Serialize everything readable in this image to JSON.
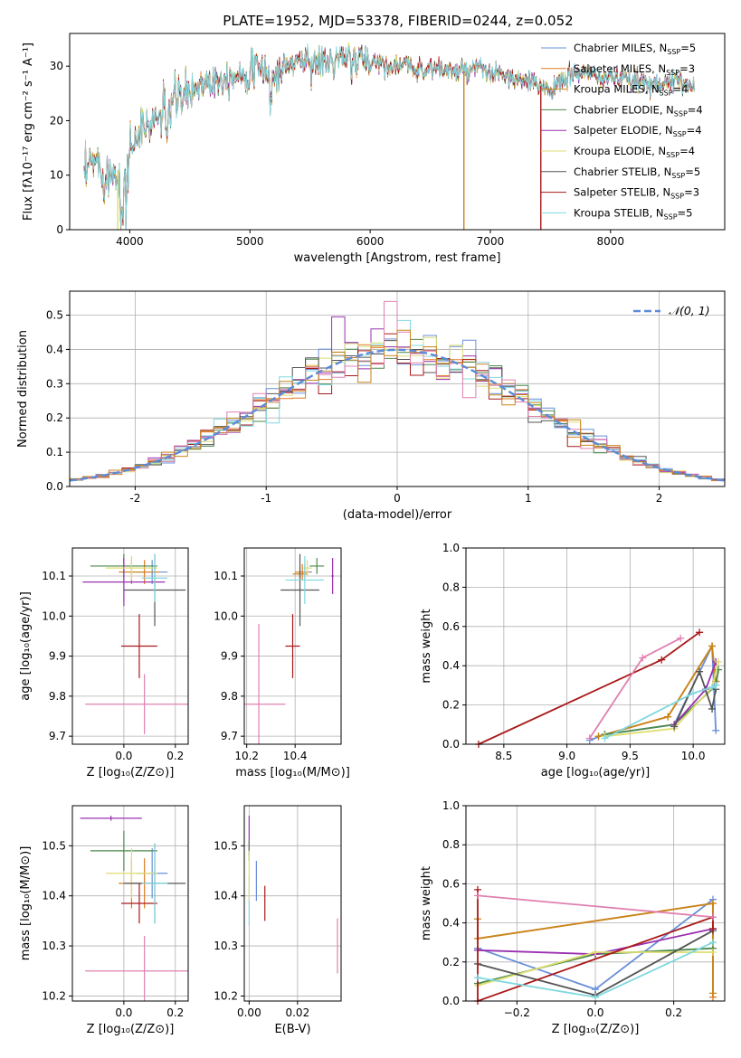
{
  "figure": {
    "title": "PLATE=1952, MJD=53378, FIBERID=0244, z=0.052"
  },
  "colors": [
    "#6a8fd8",
    "#e07b27",
    "#c8851a",
    "#4d8a4d",
    "#9a30b0",
    "#dede70",
    "#555555",
    "#aa1a1a",
    "#80d8e0",
    "#e080b0"
  ],
  "chart_data": [
    {
      "type": "line",
      "name": "spectrum",
      "xlabel": "wavelength [Angstrom, rest frame]",
      "ylabel": "Flux [fλ10⁻¹⁷ erg cm⁻² s⁻¹ A⁻¹]",
      "xlim": [
        3500,
        8950
      ],
      "ylim": [
        0,
        36
      ],
      "xticks": [
        4000,
        5000,
        6000,
        7000,
        8000
      ],
      "yticks": [
        0,
        10,
        20,
        30
      ],
      "grid": false,
      "legend": "top-right",
      "anchors_x": [
        3620,
        3700,
        3800,
        3900,
        3950,
        4000,
        4100,
        4200,
        4300,
        4400,
        4500,
        4600,
        4700,
        4800,
        4900,
        5000,
        5100,
        5200,
        5300,
        5400,
        5500,
        5600,
        5700,
        5800,
        5900,
        6000,
        6100,
        6200,
        6300,
        6400,
        6500,
        6600,
        6700,
        6800,
        6900,
        7000,
        7100,
        7200,
        7300,
        7400,
        7500,
        7600,
        7700,
        7800,
        7900,
        8000,
        8100,
        8200,
        8300,
        8400,
        8500,
        8600,
        8700
      ],
      "anchors_y": [
        9,
        13,
        10,
        11,
        8,
        15,
        18,
        20,
        22,
        24,
        25,
        27,
        27.5,
        28,
        28.5,
        29,
        29.5,
        28,
        30,
        31,
        31,
        30.5,
        31,
        31,
        32,
        31,
        30.5,
        30,
        30,
        29.5,
        29.5,
        29.5,
        29,
        29,
        29.5,
        28.5,
        28.5,
        27.5,
        27,
        26.5,
        26,
        27,
        29,
        28.5,
        28,
        28,
        27.5,
        27,
        27,
        27,
        27,
        27,
        26.5
      ],
      "series": [
        {
          "name": "Chabrier MILES, N_SSP=5"
        },
        {
          "name": "Salpeter MILES, N_SSP=3"
        },
        {
          "name": "Kroupa MILES, N_SSP=4"
        },
        {
          "name": "Chabrier ELODIE, N_SSP=4"
        },
        {
          "name": "Salpeter ELODIE, N_SSP=4"
        },
        {
          "name": "Kroupa ELODIE, N_SSP=4"
        },
        {
          "name": "Chabrier STELIB, N_SSP=5"
        },
        {
          "name": "Salpeter STELIB, N_SSP=3"
        },
        {
          "name": "Kroupa STELIB, N_SSP=5"
        }
      ],
      "drops": [
        {
          "x": 3900,
          "series_color": "#dede70"
        },
        {
          "x": 6780,
          "series_color": "#c8851a"
        },
        {
          "x": 7420,
          "series_color": "#aa1a1a"
        }
      ]
    },
    {
      "type": "histogram",
      "name": "residuals",
      "xlabel": "(data-model)/error",
      "ylabel": "Normed distribution",
      "xlim": [
        -2.5,
        2.5
      ],
      "ylim": [
        0,
        0.57
      ],
      "xticks": [
        -2,
        -1,
        0,
        1,
        2
      ],
      "yticks": [
        0.0,
        0.1,
        0.2,
        0.3,
        0.4,
        0.5
      ],
      "grid": true,
      "legend": "top-right",
      "reference_curve": {
        "label": "𝒩(0, 1)",
        "mean": 0,
        "sd": 1
      },
      "bin_width": 0.1
    },
    {
      "type": "scatter",
      "name": "age-vs-Z",
      "xlabel": "Z [log₁₀(Z/Z⊙)]",
      "ylabel": "age  [log₁₀(age/yr)]",
      "xlim": [
        -0.2,
        0.25
      ],
      "ylim": [
        9.68,
        10.17
      ],
      "xticks": [
        0.0,
        0.2
      ],
      "yticks": [
        9.7,
        9.8,
        9.9,
        10.0,
        10.1
      ],
      "grid": true,
      "points": [
        {
          "color": "#6a8fd8",
          "x": 0.11,
          "y": 10.11,
          "xerr": 0.06,
          "yerr": 0.03
        },
        {
          "color": "#e07b27",
          "x": 0.08,
          "y": 10.11,
          "xerr": 0.06,
          "yerr": 0.03
        },
        {
          "color": "#c8851a",
          "x": 0.03,
          "y": 10.11,
          "xerr": 0.05,
          "yerr": 0.03
        },
        {
          "color": "#4d8a4d",
          "x": 0.0,
          "y": 10.125,
          "xerr": 0.13,
          "yerr": 0.03
        },
        {
          "color": "#9a30b0",
          "x": 0.0,
          "y": 10.085,
          "xerr": 0.16,
          "yerr": 0.06
        },
        {
          "color": "#dede70",
          "x": 0.03,
          "y": 10.12,
          "xerr": 0.1,
          "yerr": 0.03
        },
        {
          "color": "#555555",
          "x": 0.12,
          "y": 10.065,
          "xerr": 0.12,
          "yerr": 0.09
        },
        {
          "color": "#aa1a1a",
          "x": 0.06,
          "y": 9.925,
          "xerr": 0.07,
          "yerr": 0.08
        },
        {
          "color": "#80d8e0",
          "x": 0.12,
          "y": 10.095,
          "xerr": 0.05,
          "yerr": 0.06
        },
        {
          "color": "#e080b0",
          "x": 0.08,
          "y": 9.78,
          "xerr": 0.23,
          "yerr": 0.075
        }
      ]
    },
    {
      "type": "scatter",
      "name": "age-vs-mass",
      "xlabel": "mass [log₁₀(M/M⊙)]",
      "ylabel": "",
      "xlim": [
        10.19,
        10.59
      ],
      "ylim": [
        9.68,
        10.17
      ],
      "xticks": [
        10.2,
        10.4
      ],
      "yticks": [
        9.7,
        9.8,
        9.9,
        10.0,
        10.1
      ],
      "grid": true,
      "points": [
        {
          "color": "#6a8fd8",
          "x": 10.44,
          "y": 10.11,
          "xerr": 0.03,
          "yerr": 0.02
        },
        {
          "color": "#e07b27",
          "x": 10.43,
          "y": 10.11,
          "xerr": 0.03,
          "yerr": 0.02
        },
        {
          "color": "#c8851a",
          "x": 10.42,
          "y": 10.105,
          "xerr": 0.03,
          "yerr": 0.02
        },
        {
          "color": "#4d8a4d",
          "x": 10.49,
          "y": 10.125,
          "xerr": 0.03,
          "yerr": 0.02
        },
        {
          "color": "#9a30b0",
          "x": 10.555,
          "y": 10.1,
          "xerr": 0.005,
          "yerr": 0.045
        },
        {
          "color": "#dede70",
          "x": 10.45,
          "y": 10.12,
          "xerr": 0.02,
          "yerr": 0.02
        },
        {
          "color": "#555555",
          "x": 10.42,
          "y": 10.065,
          "xerr": 0.08,
          "yerr": 0.09
        },
        {
          "color": "#aa1a1a",
          "x": 10.39,
          "y": 9.925,
          "xerr": 0.03,
          "yerr": 0.08
        },
        {
          "color": "#80d8e0",
          "x": 10.44,
          "y": 10.09,
          "xerr": 0.08,
          "yerr": 0.06
        },
        {
          "color": "#e080b0",
          "x": 10.25,
          "y": 9.78,
          "xerr": 0.11,
          "yerr": 0.2
        }
      ]
    },
    {
      "type": "line",
      "name": "weight-vs-age",
      "xlabel": "age  [log₁₀(age/yr)]",
      "ylabel": "mass weight",
      "xlim": [
        8.2,
        10.25
      ],
      "ylim": [
        0,
        1.0
      ],
      "xticks": [
        8.5,
        9.0,
        9.5,
        10.0
      ],
      "yticks": [
        0.0,
        0.2,
        0.4,
        0.6,
        0.8,
        1.0
      ],
      "grid": true,
      "series": [
        {
          "color": "#6a8fd8",
          "x": [
            9.18,
            9.3,
            9.85,
            10.15,
            10.18
          ],
          "y": [
            0.02,
            0.05,
            0.1,
            0.5,
            0.07
          ]
        },
        {
          "color": "#e07b27",
          "x": [
            9.25,
            9.8,
            10.15,
            10.18
          ],
          "y": [
            0.04,
            0.14,
            0.5,
            0.32
          ]
        },
        {
          "color": "#c8851a",
          "x": [
            9.25,
            9.8,
            10.15,
            10.18
          ],
          "y": [
            0.04,
            0.14,
            0.5,
            0.32
          ]
        },
        {
          "color": "#4d8a4d",
          "x": [
            9.3,
            9.85,
            10.18,
            10.2
          ],
          "y": [
            0.05,
            0.1,
            0.3,
            0.38
          ]
        },
        {
          "color": "#9a30b0",
          "x": [
            9.85,
            10.1,
            10.18
          ],
          "y": [
            0.1,
            0.28,
            0.42
          ]
        },
        {
          "color": "#dede70",
          "x": [
            9.3,
            9.85,
            10.15,
            10.2
          ],
          "y": [
            0.04,
            0.08,
            0.29,
            0.42
          ]
        },
        {
          "color": "#555555",
          "x": [
            9.85,
            10.05,
            10.15,
            10.18
          ],
          "y": [
            0.09,
            0.37,
            0.18,
            0.28
          ]
        },
        {
          "color": "#aa1a1a",
          "x": [
            8.3,
            9.75,
            10.05
          ],
          "y": [
            0.0,
            0.43,
            0.57
          ]
        },
        {
          "color": "#80d8e0",
          "x": [
            9.3,
            10.0,
            10.15,
            10.18
          ],
          "y": [
            0.03,
            0.26,
            0.29,
            0.3
          ]
        },
        {
          "color": "#e080b0",
          "x": [
            9.18,
            9.6,
            9.9
          ],
          "y": [
            0.03,
            0.44,
            0.54
          ]
        }
      ]
    },
    {
      "type": "scatter",
      "name": "mass-vs-Z",
      "xlabel": "Z [log₁₀(Z/Z⊙)]",
      "ylabel": "mass [log₁₀(M/M⊙)]",
      "xlim": [
        -0.2,
        0.25
      ],
      "ylim": [
        10.19,
        10.58
      ],
      "xticks": [
        0.0,
        0.2
      ],
      "yticks": [
        10.2,
        10.3,
        10.4,
        10.5
      ],
      "grid": true,
      "points": [
        {
          "color": "#6a8fd8",
          "x": 0.11,
          "y": 10.445,
          "xerr": 0.06,
          "yerr": 0.05
        },
        {
          "color": "#e07b27",
          "x": 0.08,
          "y": 10.425,
          "xerr": 0.06,
          "yerr": 0.05
        },
        {
          "color": "#c8851a",
          "x": 0.03,
          "y": 10.425,
          "xerr": 0.05,
          "yerr": 0.05
        },
        {
          "color": "#4d8a4d",
          "x": 0.0,
          "y": 10.49,
          "xerr": 0.13,
          "yerr": 0.04
        },
        {
          "color": "#9a30b0",
          "x": -0.05,
          "y": 10.555,
          "xerr": 0.12,
          "yerr": 0.005
        },
        {
          "color": "#dede70",
          "x": 0.03,
          "y": 10.445,
          "xerr": 0.1,
          "yerr": 0.05
        },
        {
          "color": "#555555",
          "x": 0.12,
          "y": 10.425,
          "xerr": 0.12,
          "yerr": 0.08
        },
        {
          "color": "#aa1a1a",
          "x": 0.06,
          "y": 10.385,
          "xerr": 0.07,
          "yerr": 0.04
        },
        {
          "color": "#80d8e0",
          "x": 0.12,
          "y": 10.425,
          "xerr": 0.05,
          "yerr": 0.08
        },
        {
          "color": "#e080b0",
          "x": 0.08,
          "y": 10.25,
          "xerr": 0.23,
          "yerr": 0.07
        }
      ]
    },
    {
      "type": "scatter",
      "name": "mass-vs-EBV",
      "xlabel": "E(B-V)",
      "ylabel": "",
      "xlim": [
        -0.002,
        0.038
      ],
      "ylim": [
        10.19,
        10.58
      ],
      "xticks": [
        0.0,
        0.02
      ],
      "yticks": [
        10.2,
        10.3,
        10.4,
        10.5
      ],
      "grid": true,
      "points": [
        {
          "color": "#9a30b0",
          "x": 0.0,
          "y": 10.52,
          "yerr": 0.04
        },
        {
          "color": "#80d8e0",
          "x": 0.0,
          "y": 10.39,
          "yerr": 0.05
        },
        {
          "color": "#6a8fd8",
          "x": 0.003,
          "y": 10.43,
          "yerr": 0.04
        },
        {
          "color": "#aa1a1a",
          "x": 0.0065,
          "y": 10.385,
          "yerr": 0.035
        },
        {
          "color": "#4d8a4d",
          "x": 0.0,
          "y": 10.49,
          "yerr": 0.02
        },
        {
          "color": "#dede70",
          "x": 0.0,
          "y": 10.44,
          "yerr": 0.05
        },
        {
          "color": "#e080b0",
          "x": 0.0365,
          "y": 10.3,
          "yerr": 0.055
        }
      ]
    },
    {
      "type": "line",
      "name": "weight-vs-Z",
      "xlabel": "Z [log₁₀(Z/Z⊙)]",
      "ylabel": "mass weight",
      "xlim": [
        -0.33,
        0.33
      ],
      "ylim": [
        0,
        1.0
      ],
      "xticks": [
        -0.2,
        0.0,
        0.2
      ],
      "yticks": [
        0.0,
        0.2,
        0.4,
        0.6,
        0.8,
        1.0
      ],
      "grid": true,
      "series": [
        {
          "color": "#6a8fd8",
          "x": [
            -0.3,
            0.0,
            0.3
          ],
          "y": [
            0.27,
            0.06,
            0.52
          ]
        },
        {
          "color": "#e07b27",
          "x": [
            -0.3,
            0.3,
            0.3
          ],
          "y": [
            0.32,
            0.5,
            0.02
          ]
        },
        {
          "color": "#c8851a",
          "x": [
            -0.3,
            -0.3,
            0.3,
            0.3
          ],
          "y": [
            0.42,
            0.32,
            0.5,
            0.04
          ]
        },
        {
          "color": "#4d8a4d",
          "x": [
            -0.3,
            0.0,
            0.3
          ],
          "y": [
            0.09,
            0.24,
            0.27
          ]
        },
        {
          "color": "#9a30b0",
          "x": [
            -0.3,
            0.0,
            0.3
          ],
          "y": [
            0.26,
            0.24,
            0.37
          ]
        },
        {
          "color": "#dede70",
          "x": [
            -0.3,
            0.0,
            0.3
          ],
          "y": [
            0.08,
            0.25,
            0.25
          ]
        },
        {
          "color": "#555555",
          "x": [
            -0.3,
            0.0,
            0.3
          ],
          "y": [
            0.19,
            0.03,
            0.36
          ]
        },
        {
          "color": "#aa1a1a",
          "x": [
            -0.3,
            -0.3,
            0.3,
            0.3
          ],
          "y": [
            0.57,
            0.0,
            0.43,
            0.37
          ]
        },
        {
          "color": "#80d8e0",
          "x": [
            -0.3,
            0.0,
            0.3
          ],
          "y": [
            0.12,
            0.02,
            0.3
          ]
        },
        {
          "color": "#e080b0",
          "x": [
            -0.3,
            0.3
          ],
          "y": [
            0.54,
            0.43
          ]
        }
      ]
    }
  ]
}
